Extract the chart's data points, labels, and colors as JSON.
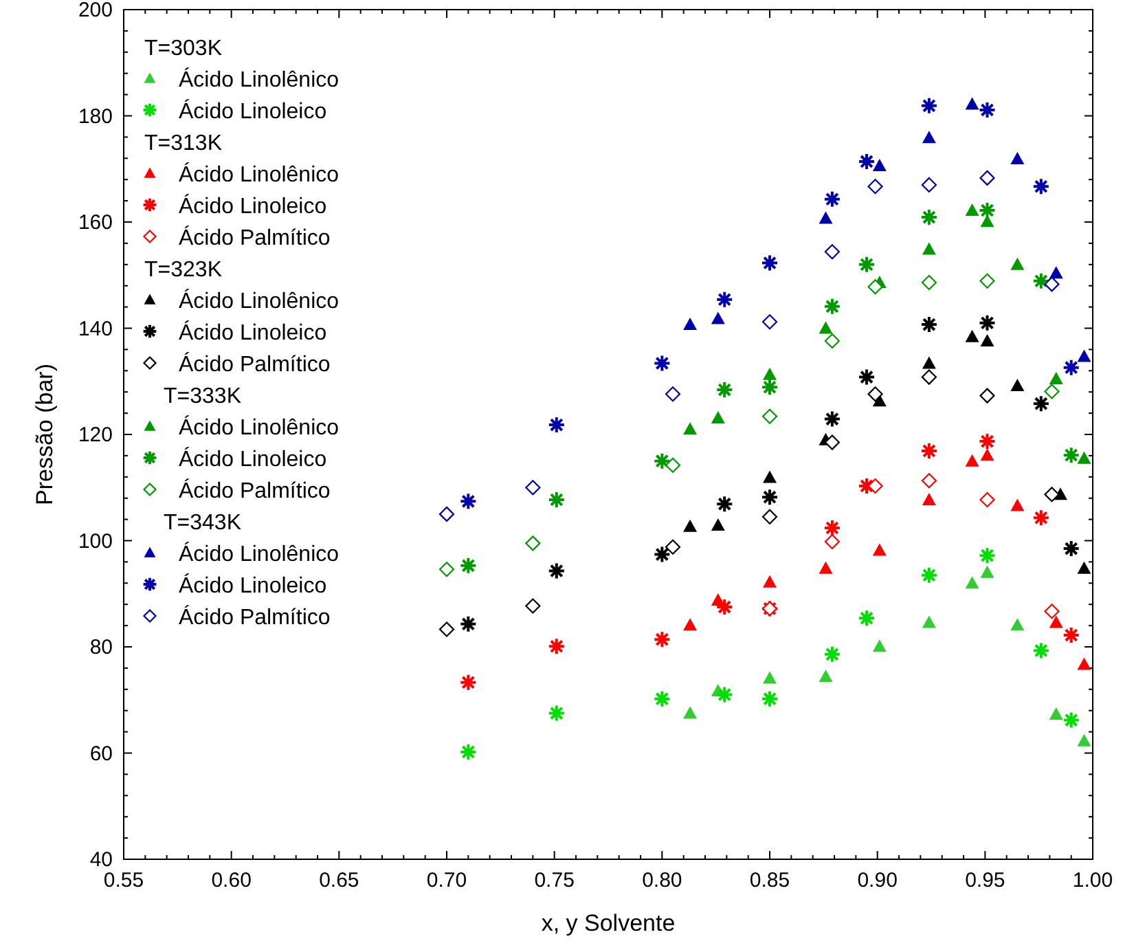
{
  "chart_data": {
    "type": "scatter",
    "xlabel": "x, y Solvente",
    "ylabel": "Pressão (bar)",
    "xlim": [
      0.55,
      1.0
    ],
    "ylim": [
      40,
      200
    ],
    "xticks": [
      {
        "value": 0.55,
        "label": "0.55"
      },
      {
        "value": 0.6,
        "label": "0.60"
      },
      {
        "value": 0.65,
        "label": "0.65"
      },
      {
        "value": 0.7,
        "label": "0.70"
      },
      {
        "value": 0.75,
        "label": "0.75"
      },
      {
        "value": 0.8,
        "label": "0.80"
      },
      {
        "value": 0.85,
        "label": "0.85"
      },
      {
        "value": 0.9,
        "label": "0.90"
      },
      {
        "value": 0.95,
        "label": "0.95"
      },
      {
        "value": 1.0,
        "label": "1.00"
      }
    ],
    "yticks": [
      40,
      60,
      80,
      100,
      120,
      140,
      160,
      180,
      200
    ],
    "grid": false,
    "legend": "top left",
    "annotations": [
      "T=303K",
      "T=313K",
      "T=323K",
      "T=333K",
      "T=343K"
    ],
    "series": [
      {
        "name": "Ácido Linolênico",
        "marker": "triangle",
        "color": "#33cc33",
        "x": [
          0.813,
          0.826,
          0.85,
          0.876,
          0.901,
          0.924,
          0.944,
          0.951,
          0.965,
          0.983,
          0.996
        ],
        "values": [
          67.5,
          71.7,
          74.1,
          74.4,
          80.1,
          84.6,
          92.0,
          94.0,
          84.1,
          67.3,
          62.3
        ]
      },
      {
        "name": "Ácido Linoleico",
        "marker": "cross",
        "color": "#00dd00",
        "x": [
          0.71,
          0.751,
          0.8,
          0.829,
          0.85,
          0.879,
          0.895,
          0.924,
          0.951,
          0.976,
          0.99
        ],
        "values": [
          60.2,
          67.5,
          70.2,
          71.0,
          70.2,
          78.6,
          85.4,
          93.5,
          97.2,
          79.3,
          66.2
        ]
      },
      {
        "name": "Ácido Linolênico",
        "marker": "triangle",
        "color": "#ff0000",
        "x": [
          0.813,
          0.826,
          0.85,
          0.876,
          0.901,
          0.924,
          0.944,
          0.951,
          0.965,
          0.983,
          0.996
        ],
        "values": [
          84.1,
          88.8,
          92.2,
          94.8,
          98.2,
          107.7,
          115.0,
          116.1,
          106.6,
          84.6,
          76.7
        ]
      },
      {
        "name": "Ácido Linoleico",
        "marker": "cross",
        "color": "#ff0000",
        "x": [
          0.71,
          0.751,
          0.8,
          0.829,
          0.85,
          0.879,
          0.895,
          0.924,
          0.951,
          0.976,
          0.99
        ],
        "values": [
          73.3,
          80.1,
          81.4,
          87.5,
          87.2,
          102.4,
          110.3,
          116.9,
          118.7,
          104.3,
          82.2
        ]
      },
      {
        "name": "Ácido Palmítico",
        "marker": "diamond",
        "color": "#ff0000",
        "x": [
          0.85,
          0.879,
          0.899,
          0.924,
          0.951,
          0.981
        ],
        "values": [
          87.2,
          99.8,
          110.3,
          111.3,
          107.7,
          86.7
        ]
      },
      {
        "name": "Ácido Linolênico",
        "marker": "triangle",
        "color": "#000000",
        "x": [
          0.813,
          0.826,
          0.85,
          0.876,
          0.901,
          0.924,
          0.944,
          0.951,
          0.965,
          0.985,
          0.996
        ],
        "values": [
          102.7,
          102.9,
          111.9,
          119.0,
          126.3,
          133.4,
          138.4,
          137.6,
          129.2,
          108.7,
          94.8
        ]
      },
      {
        "name": "Ácido Linoleico",
        "marker": "cross",
        "color": "#000000",
        "x": [
          0.71,
          0.751,
          0.8,
          0.829,
          0.85,
          0.879,
          0.895,
          0.924,
          0.951,
          0.976,
          0.99
        ],
        "values": [
          84.3,
          94.3,
          97.4,
          106.9,
          108.2,
          122.9,
          130.8,
          140.7,
          141.0,
          125.8,
          98.5
        ]
      },
      {
        "name": "Ácido Palmítico",
        "marker": "diamond",
        "color": "#000000",
        "x": [
          0.7,
          0.74,
          0.805,
          0.85,
          0.879,
          0.899,
          0.924,
          0.951,
          0.981
        ],
        "values": [
          83.3,
          87.7,
          98.8,
          104.5,
          118.5,
          127.6,
          130.8,
          127.3,
          108.7
        ]
      },
      {
        "name": "Ácido Linolênico",
        "marker": "triangle",
        "color": "#009900",
        "x": [
          0.813,
          0.826,
          0.85,
          0.876,
          0.901,
          0.924,
          0.944,
          0.951,
          0.965,
          0.983,
          0.996
        ],
        "values": [
          121.0,
          123.1,
          131.3,
          140.0,
          148.6,
          154.9,
          162.2,
          160.1,
          152.0,
          130.5,
          115.5
        ]
      },
      {
        "name": "Ácido Linoleico",
        "marker": "cross",
        "color": "#009900",
        "x": [
          0.71,
          0.751,
          0.8,
          0.829,
          0.85,
          0.879,
          0.895,
          0.924,
          0.951,
          0.976,
          0.99
        ],
        "values": [
          95.3,
          107.7,
          115.0,
          128.4,
          128.9,
          144.1,
          152.0,
          160.9,
          162.2,
          148.9,
          116.1
        ]
      },
      {
        "name": "Ácido Palmítico",
        "marker": "diamond",
        "color": "#009900",
        "x": [
          0.7,
          0.74,
          0.805,
          0.85,
          0.879,
          0.899,
          0.924,
          0.951,
          0.981
        ],
        "values": [
          94.6,
          99.5,
          114.2,
          123.4,
          137.6,
          147.8,
          148.6,
          148.9,
          128.1
        ]
      },
      {
        "name": "Ácido Linolênico",
        "marker": "triangle",
        "color": "#0000aa",
        "x": [
          0.813,
          0.826,
          0.876,
          0.901,
          0.924,
          0.944,
          0.965,
          0.983,
          0.996
        ],
        "values": [
          140.7,
          141.8,
          160.7,
          170.6,
          175.9,
          182.2,
          171.9,
          150.4,
          134.7
        ]
      },
      {
        "name": "Ácido Linoleico",
        "marker": "cross",
        "color": "#0000aa",
        "x": [
          0.71,
          0.751,
          0.8,
          0.829,
          0.85,
          0.879,
          0.895,
          0.924,
          0.951,
          0.976,
          0.99
        ],
        "values": [
          107.4,
          121.8,
          133.4,
          145.4,
          152.3,
          164.3,
          171.4,
          181.9,
          181.1,
          166.7,
          132.6
        ]
      },
      {
        "name": "Ácido Palmítico",
        "marker": "diamond",
        "color": "#0000aa",
        "x": [
          0.7,
          0.74,
          0.805,
          0.85,
          0.879,
          0.899,
          0.924,
          0.951,
          0.981
        ],
        "values": [
          105.0,
          110.0,
          127.6,
          141.2,
          154.4,
          166.7,
          167.0,
          168.3,
          148.3
        ]
      }
    ]
  }
}
